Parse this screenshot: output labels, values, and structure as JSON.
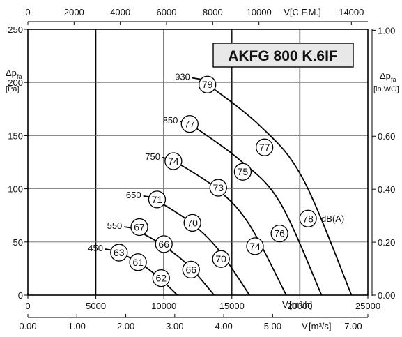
{
  "chart_data": {
    "type": "line",
    "title": "AKFG 800 K.6IF",
    "xlabel": "V[m³/h]",
    "ylabel": "Δp_fa [Pa]",
    "xlim": [
      0,
      25000
    ],
    "ylim": [
      0,
      250
    ],
    "x_ticks": [
      0,
      5000,
      10000,
      15000,
      20000,
      25000
    ],
    "y_ticks": [
      0,
      50,
      100,
      150,
      200,
      250
    ],
    "grid": true,
    "axes": {
      "bottom": {
        "label_main": "V",
        "label_unit": "[m³/h]"
      },
      "top": {
        "label": "V[C.F.M.]",
        "ticks": [
          "0",
          "2000",
          "4000",
          "6000",
          "8000",
          "10000",
          "14000"
        ]
      },
      "bottom2": {
        "label_main": "V",
        "label_unit": "[m³/s]",
        "ticks": [
          "0.00",
          "1.00",
          "2.00",
          "3.00",
          "4.00",
          "5.00",
          "7.00"
        ]
      },
      "left": {
        "label_main": "Δp",
        "label_sub": "fa",
        "label_unit": "[Pa]"
      },
      "right": {
        "label_main": "Δp",
        "label_sub": "fa",
        "label_unit": "[in.WG]",
        "ticks": [
          "0.00",
          "0.20",
          "0.40",
          "0.60",
          "1.00"
        ]
      }
    },
    "series": [
      {
        "name": "450",
        "points": [
          [
            6300,
            42
          ],
          [
            8000,
            32
          ],
          [
            9500,
            18
          ],
          [
            11000,
            0
          ]
        ]
      },
      {
        "name": "550",
        "points": [
          [
            7700,
            63
          ],
          [
            9800,
            48
          ],
          [
            11800,
            28
          ],
          [
            13700,
            0
          ]
        ]
      },
      {
        "name": "650",
        "points": [
          [
            9100,
            92
          ],
          [
            11800,
            70
          ],
          [
            14000,
            43
          ],
          [
            16300,
            0
          ]
        ]
      },
      {
        "name": "750",
        "points": [
          [
            10500,
            128
          ],
          [
            13700,
            102
          ],
          [
            16200,
            68
          ],
          [
            19000,
            0
          ]
        ]
      },
      {
        "name": "850",
        "points": [
          [
            11800,
            162
          ],
          [
            15500,
            128
          ],
          [
            18500,
            88
          ],
          [
            21600,
            0
          ]
        ]
      },
      {
        "name": "930",
        "points": [
          [
            12700,
            203
          ],
          [
            17000,
            160
          ],
          [
            20200,
            110
          ],
          [
            23800,
            0
          ]
        ]
      }
    ],
    "bubbles": [
      {
        "text": "79",
        "x": 13200,
        "y": 198
      },
      {
        "text": "77",
        "x": 11900,
        "y": 161
      },
      {
        "text": "77",
        "x": 17400,
        "y": 139
      },
      {
        "text": "74",
        "x": 10700,
        "y": 126
      },
      {
        "text": "75",
        "x": 15800,
        "y": 116
      },
      {
        "text": "71",
        "x": 9500,
        "y": 90
      },
      {
        "text": "73",
        "x": 14000,
        "y": 101
      },
      {
        "text": "67",
        "x": 8200,
        "y": 64
      },
      {
        "text": "70",
        "x": 12100,
        "y": 68
      },
      {
        "text": "66",
        "x": 10000,
        "y": 48
      },
      {
        "text": "76",
        "x": 18500,
        "y": 58
      },
      {
        "text": "74",
        "x": 16700,
        "y": 46
      },
      {
        "text": "63",
        "x": 6700,
        "y": 40
      },
      {
        "text": "61",
        "x": 8100,
        "y": 31
      },
      {
        "text": "70",
        "x": 14200,
        "y": 34
      },
      {
        "text": "66",
        "x": 12000,
        "y": 24
      },
      {
        "text": "62",
        "x": 9800,
        "y": 16
      },
      {
        "text": "78",
        "x": 20600,
        "y": 72
      }
    ],
    "db_label": "dB(A)"
  }
}
